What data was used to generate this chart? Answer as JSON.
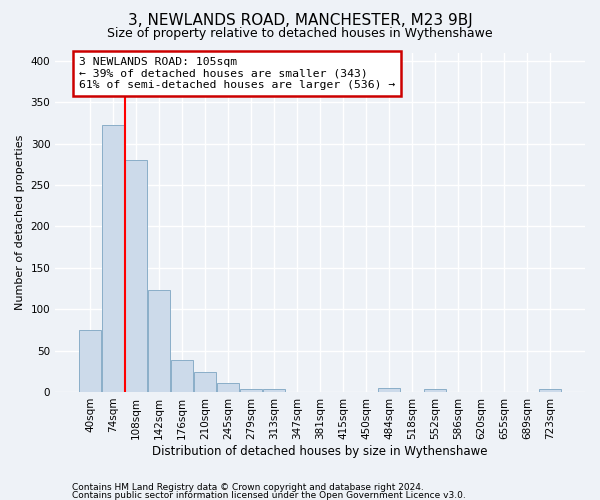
{
  "title": "3, NEWLANDS ROAD, MANCHESTER, M23 9BJ",
  "subtitle": "Size of property relative to detached houses in Wythenshawe",
  "xlabel": "Distribution of detached houses by size in Wythenshawe",
  "ylabel": "Number of detached properties",
  "footnote1": "Contains HM Land Registry data © Crown copyright and database right 2024.",
  "footnote2": "Contains public sector information licensed under the Open Government Licence v3.0.",
  "bin_labels": [
    "40sqm",
    "74sqm",
    "108sqm",
    "142sqm",
    "176sqm",
    "210sqm",
    "245sqm",
    "279sqm",
    "313sqm",
    "347sqm",
    "381sqm",
    "415sqm",
    "450sqm",
    "484sqm",
    "518sqm",
    "552sqm",
    "586sqm",
    "620sqm",
    "655sqm",
    "689sqm",
    "723sqm"
  ],
  "bar_heights": [
    75,
    323,
    280,
    123,
    38,
    24,
    11,
    4,
    3,
    0,
    0,
    0,
    0,
    5,
    0,
    3,
    0,
    0,
    0,
    0,
    3
  ],
  "bar_color": "#ccdaea",
  "bar_edge_color": "#8aaec8",
  "annotation_text1": "3 NEWLANDS ROAD: 105sqm",
  "annotation_text2": "← 39% of detached houses are smaller (343)",
  "annotation_text3": "61% of semi-detached houses are larger (536) →",
  "annotation_box_color": "#ffffff",
  "annotation_box_edge": "#cc0000",
  "red_line_x": 1.5,
  "ylim": [
    0,
    410
  ],
  "yticks": [
    0,
    50,
    100,
    150,
    200,
    250,
    300,
    350,
    400
  ],
  "background_color": "#eef2f7",
  "grid_color": "#ffffff",
  "title_fontsize": 11,
  "subtitle_fontsize": 9,
  "ylabel_fontsize": 8,
  "xlabel_fontsize": 8.5,
  "tick_fontsize": 7.5,
  "footnote_fontsize": 6.5
}
